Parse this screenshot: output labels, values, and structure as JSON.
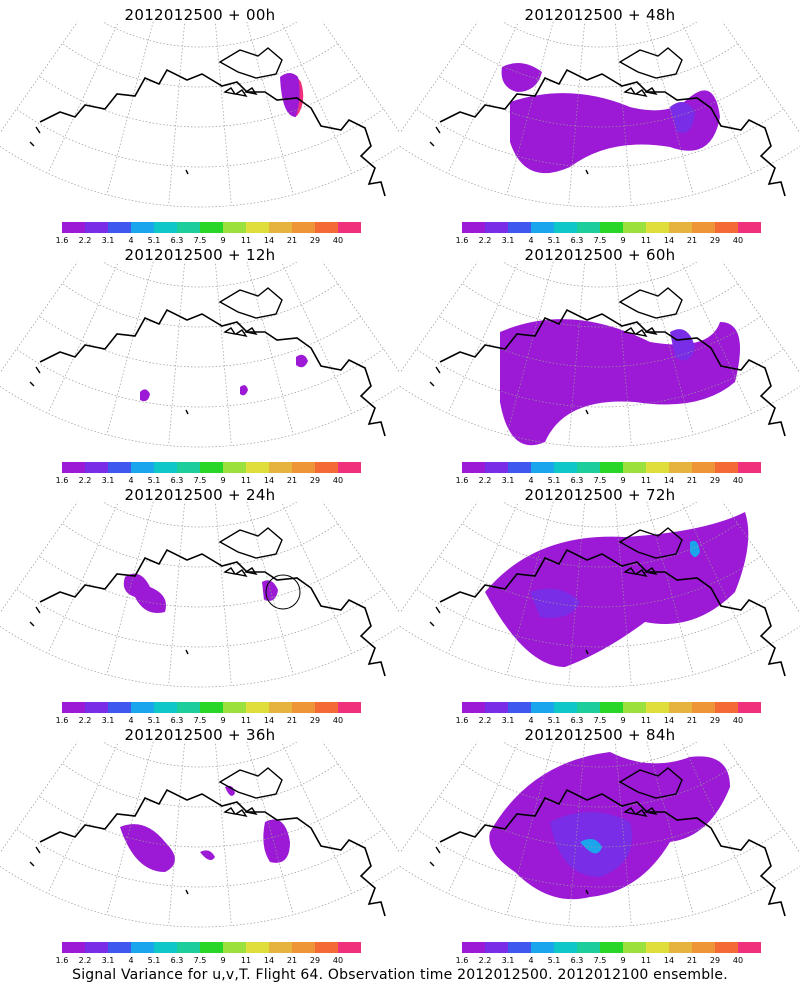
{
  "panels": [
    {
      "title": "2012012500 + 00h"
    },
    {
      "title": "2012012500 + 48h"
    },
    {
      "title": "2012012500 + 12h"
    },
    {
      "title": "2012012500 + 60h"
    },
    {
      "title": "2012012500 + 24h"
    },
    {
      "title": "2012012500 + 72h"
    },
    {
      "title": "2012012500 + 36h"
    },
    {
      "title": "2012012500 + 84h"
    }
  ],
  "colorbar": {
    "colors": [
      "#9c19d6",
      "#7a2de6",
      "#3f56ef",
      "#1aa5ec",
      "#0fc7c9",
      "#1dcd9a",
      "#28d628",
      "#9be03c",
      "#dfdf3c",
      "#e6b43c",
      "#ee9637",
      "#f56a34",
      "#f0307a"
    ],
    "labels": [
      "1.6",
      "2.2",
      "3.1",
      "4",
      "5.1",
      "6.3",
      "7.5",
      "9",
      "11",
      "14",
      "21",
      "29",
      "40"
    ]
  },
  "caption": "Signal Variance for u,v,T. Flight 64. Observation time 2012012500. 2012012100 ensemble."
}
